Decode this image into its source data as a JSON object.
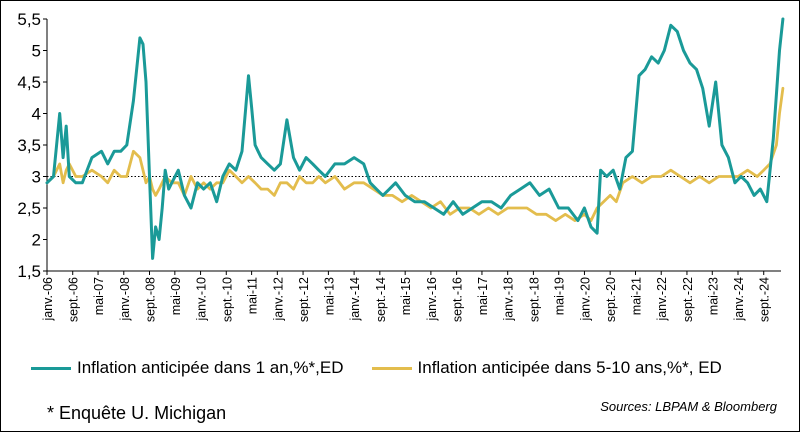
{
  "chart_data": {
    "type": "line",
    "title": "",
    "xlabel": "",
    "ylabel": "",
    "ylim": [
      1.5,
      5.5
    ],
    "yticks": [
      "1,5",
      "2",
      "2,5",
      "3",
      "3,5",
      "4",
      "4,5",
      "5",
      "5,5"
    ],
    "ytick_values": [
      1.5,
      2,
      2.5,
      3,
      3.5,
      4,
      4.5,
      5,
      5.5
    ],
    "reference_line": 3,
    "xlim": [
      2006.0,
      2025.12
    ],
    "x_tick_labels": [
      "janv.-06",
      "sept.-06",
      "mai-07",
      "janv.-08",
      "sept.-08",
      "mai-09",
      "janv.-10",
      "sept.-10",
      "mai-11",
      "janv.-12",
      "sept.-12",
      "mai-13",
      "janv.-14",
      "sept.-14",
      "mai-15",
      "janv.-16",
      "sept.-16",
      "mai-17",
      "janv.-18",
      "sept.-18",
      "mai-19",
      "janv.-20",
      "sept.-20",
      "mai-21",
      "janv.-22",
      "sept.-22",
      "mai-23",
      "janv.-24",
      "sept.-24"
    ],
    "x_tick_positions": [
      2006.0,
      2006.67,
      2007.33,
      2008.0,
      2008.67,
      2009.33,
      2010.0,
      2010.67,
      2011.33,
      2012.0,
      2012.67,
      2013.33,
      2014.0,
      2014.67,
      2015.33,
      2016.0,
      2016.67,
      2017.33,
      2018.0,
      2018.67,
      2019.33,
      2020.0,
      2020.67,
      2021.33,
      2022.0,
      2022.67,
      2023.33,
      2024.0,
      2024.67
    ],
    "series": [
      {
        "name": "Inflation anticipée dans 1 an,%*,ED",
        "color": "#1a9a98",
        "x": [
          2006.0,
          2006.17,
          2006.33,
          2006.42,
          2006.5,
          2006.58,
          2006.75,
          2006.92,
          2007.17,
          2007.42,
          2007.58,
          2007.75,
          2007.92,
          2008.08,
          2008.25,
          2008.42,
          2008.5,
          2008.58,
          2008.67,
          2008.75,
          2008.83,
          2008.92,
          2009.0,
          2009.08,
          2009.17,
          2009.25,
          2009.42,
          2009.58,
          2009.75,
          2009.92,
          2010.08,
          2010.25,
          2010.42,
          2010.58,
          2010.75,
          2010.92,
          2011.08,
          2011.25,
          2011.33,
          2011.42,
          2011.5,
          2011.58,
          2011.75,
          2011.92,
          2012.08,
          2012.25,
          2012.42,
          2012.58,
          2012.75,
          2012.92,
          2013.08,
          2013.25,
          2013.5,
          2013.75,
          2014.0,
          2014.25,
          2014.42,
          2014.58,
          2014.75,
          2014.92,
          2015.08,
          2015.33,
          2015.58,
          2015.83,
          2016.08,
          2016.33,
          2016.58,
          2016.83,
          2017.08,
          2017.33,
          2017.58,
          2017.83,
          2018.08,
          2018.33,
          2018.58,
          2018.83,
          2019.08,
          2019.33,
          2019.58,
          2019.83,
          2020.0,
          2020.17,
          2020.33,
          2020.42,
          2020.58,
          2020.75,
          2020.92,
          2021.08,
          2021.25,
          2021.42,
          2021.58,
          2021.75,
          2021.92,
          2022.08,
          2022.25,
          2022.42,
          2022.58,
          2022.75,
          2022.92,
          2023.08,
          2023.25,
          2023.42,
          2023.58,
          2023.75,
          2023.92,
          2024.08,
          2024.25,
          2024.42,
          2024.58,
          2024.75,
          2024.92,
          2025.08,
          2025.17
        ],
        "values": [
          2.9,
          3.0,
          4.0,
          3.3,
          3.8,
          3.0,
          2.9,
          2.9,
          3.3,
          3.4,
          3.2,
          3.4,
          3.4,
          3.5,
          4.2,
          5.2,
          5.1,
          4.5,
          3.0,
          1.7,
          2.2,
          2.0,
          2.5,
          3.1,
          2.8,
          2.9,
          3.1,
          2.7,
          2.5,
          2.9,
          2.8,
          2.9,
          2.6,
          3.0,
          3.2,
          3.1,
          3.4,
          4.6,
          4.1,
          3.5,
          3.4,
          3.3,
          3.2,
          3.1,
          3.2,
          3.9,
          3.3,
          3.1,
          3.3,
          3.2,
          3.1,
          3.0,
          3.2,
          3.2,
          3.3,
          3.2,
          2.9,
          2.8,
          2.7,
          2.8,
          2.9,
          2.7,
          2.6,
          2.6,
          2.5,
          2.4,
          2.6,
          2.4,
          2.5,
          2.6,
          2.6,
          2.5,
          2.7,
          2.8,
          2.9,
          2.7,
          2.8,
          2.5,
          2.5,
          2.3,
          2.5,
          2.2,
          2.1,
          3.1,
          3.0,
          3.1,
          2.8,
          3.3,
          3.4,
          4.6,
          4.7,
          4.9,
          4.8,
          5.0,
          5.4,
          5.3,
          5.0,
          4.8,
          4.7,
          4.4,
          3.8,
          4.5,
          3.5,
          3.3,
          2.9,
          3.0,
          2.9,
          2.7,
          2.8,
          2.6,
          3.6,
          5.0,
          5.5
        ]
      },
      {
        "name": "Inflation anticipée dans 5-10 ans,%*, ED",
        "color": "#e3bd4d",
        "x": [
          2006.0,
          2006.17,
          2006.33,
          2006.42,
          2006.5,
          2006.58,
          2006.75,
          2006.92,
          2007.17,
          2007.42,
          2007.58,
          2007.75,
          2007.92,
          2008.08,
          2008.25,
          2008.42,
          2008.5,
          2008.58,
          2008.67,
          2008.75,
          2008.83,
          2008.92,
          2009.08,
          2009.25,
          2009.42,
          2009.58,
          2009.75,
          2009.92,
          2010.08,
          2010.25,
          2010.42,
          2010.58,
          2010.75,
          2010.92,
          2011.08,
          2011.25,
          2011.42,
          2011.58,
          2011.75,
          2011.92,
          2012.08,
          2012.25,
          2012.42,
          2012.58,
          2012.75,
          2012.92,
          2013.08,
          2013.25,
          2013.5,
          2013.75,
          2014.0,
          2014.25,
          2014.5,
          2014.75,
          2015.0,
          2015.25,
          2015.5,
          2015.75,
          2016.0,
          2016.25,
          2016.5,
          2016.75,
          2017.0,
          2017.25,
          2017.5,
          2017.75,
          2018.0,
          2018.25,
          2018.5,
          2018.75,
          2019.0,
          2019.25,
          2019.5,
          2019.75,
          2020.0,
          2020.17,
          2020.33,
          2020.5,
          2020.67,
          2020.83,
          2021.0,
          2021.25,
          2021.5,
          2021.75,
          2022.0,
          2022.25,
          2022.5,
          2022.75,
          2023.0,
          2023.25,
          2023.5,
          2023.75,
          2024.0,
          2024.25,
          2024.5,
          2024.67,
          2024.83,
          2025.0,
          2025.08,
          2025.17
        ],
        "values": [
          2.9,
          3.0,
          3.2,
          2.9,
          3.1,
          3.2,
          3.0,
          3.0,
          3.1,
          3.0,
          2.9,
          3.1,
          3.0,
          3.0,
          3.4,
          3.3,
          3.1,
          2.9,
          3.0,
          2.8,
          2.7,
          2.8,
          3.0,
          2.9,
          2.9,
          2.7,
          3.0,
          2.8,
          2.9,
          2.8,
          2.9,
          2.9,
          3.1,
          3.0,
          2.9,
          3.0,
          2.9,
          2.8,
          2.8,
          2.7,
          2.9,
          2.9,
          2.8,
          3.0,
          2.9,
          2.9,
          3.0,
          2.9,
          3.0,
          2.8,
          2.9,
          2.9,
          2.8,
          2.7,
          2.7,
          2.6,
          2.7,
          2.6,
          2.5,
          2.6,
          2.4,
          2.5,
          2.5,
          2.4,
          2.5,
          2.4,
          2.5,
          2.5,
          2.5,
          2.4,
          2.4,
          2.3,
          2.4,
          2.3,
          2.4,
          2.3,
          2.5,
          2.6,
          2.7,
          2.6,
          2.9,
          3.0,
          2.9,
          3.0,
          3.0,
          3.1,
          3.0,
          2.9,
          3.0,
          2.9,
          3.0,
          3.0,
          3.0,
          3.1,
          3.0,
          3.1,
          3.2,
          3.5,
          4.0,
          4.4
        ]
      }
    ]
  },
  "legend": {
    "item1": "Inflation anticipée dans 1 an,%*,ED",
    "item2": "Inflation anticipée dans 5-10 ans,%*, ED"
  },
  "footnote": "* Enquête U. Michigan",
  "sources": "Sources: LBPAM & Bloomberg",
  "colors": {
    "teal": "#1a9a98",
    "gold": "#e3bd4d"
  }
}
